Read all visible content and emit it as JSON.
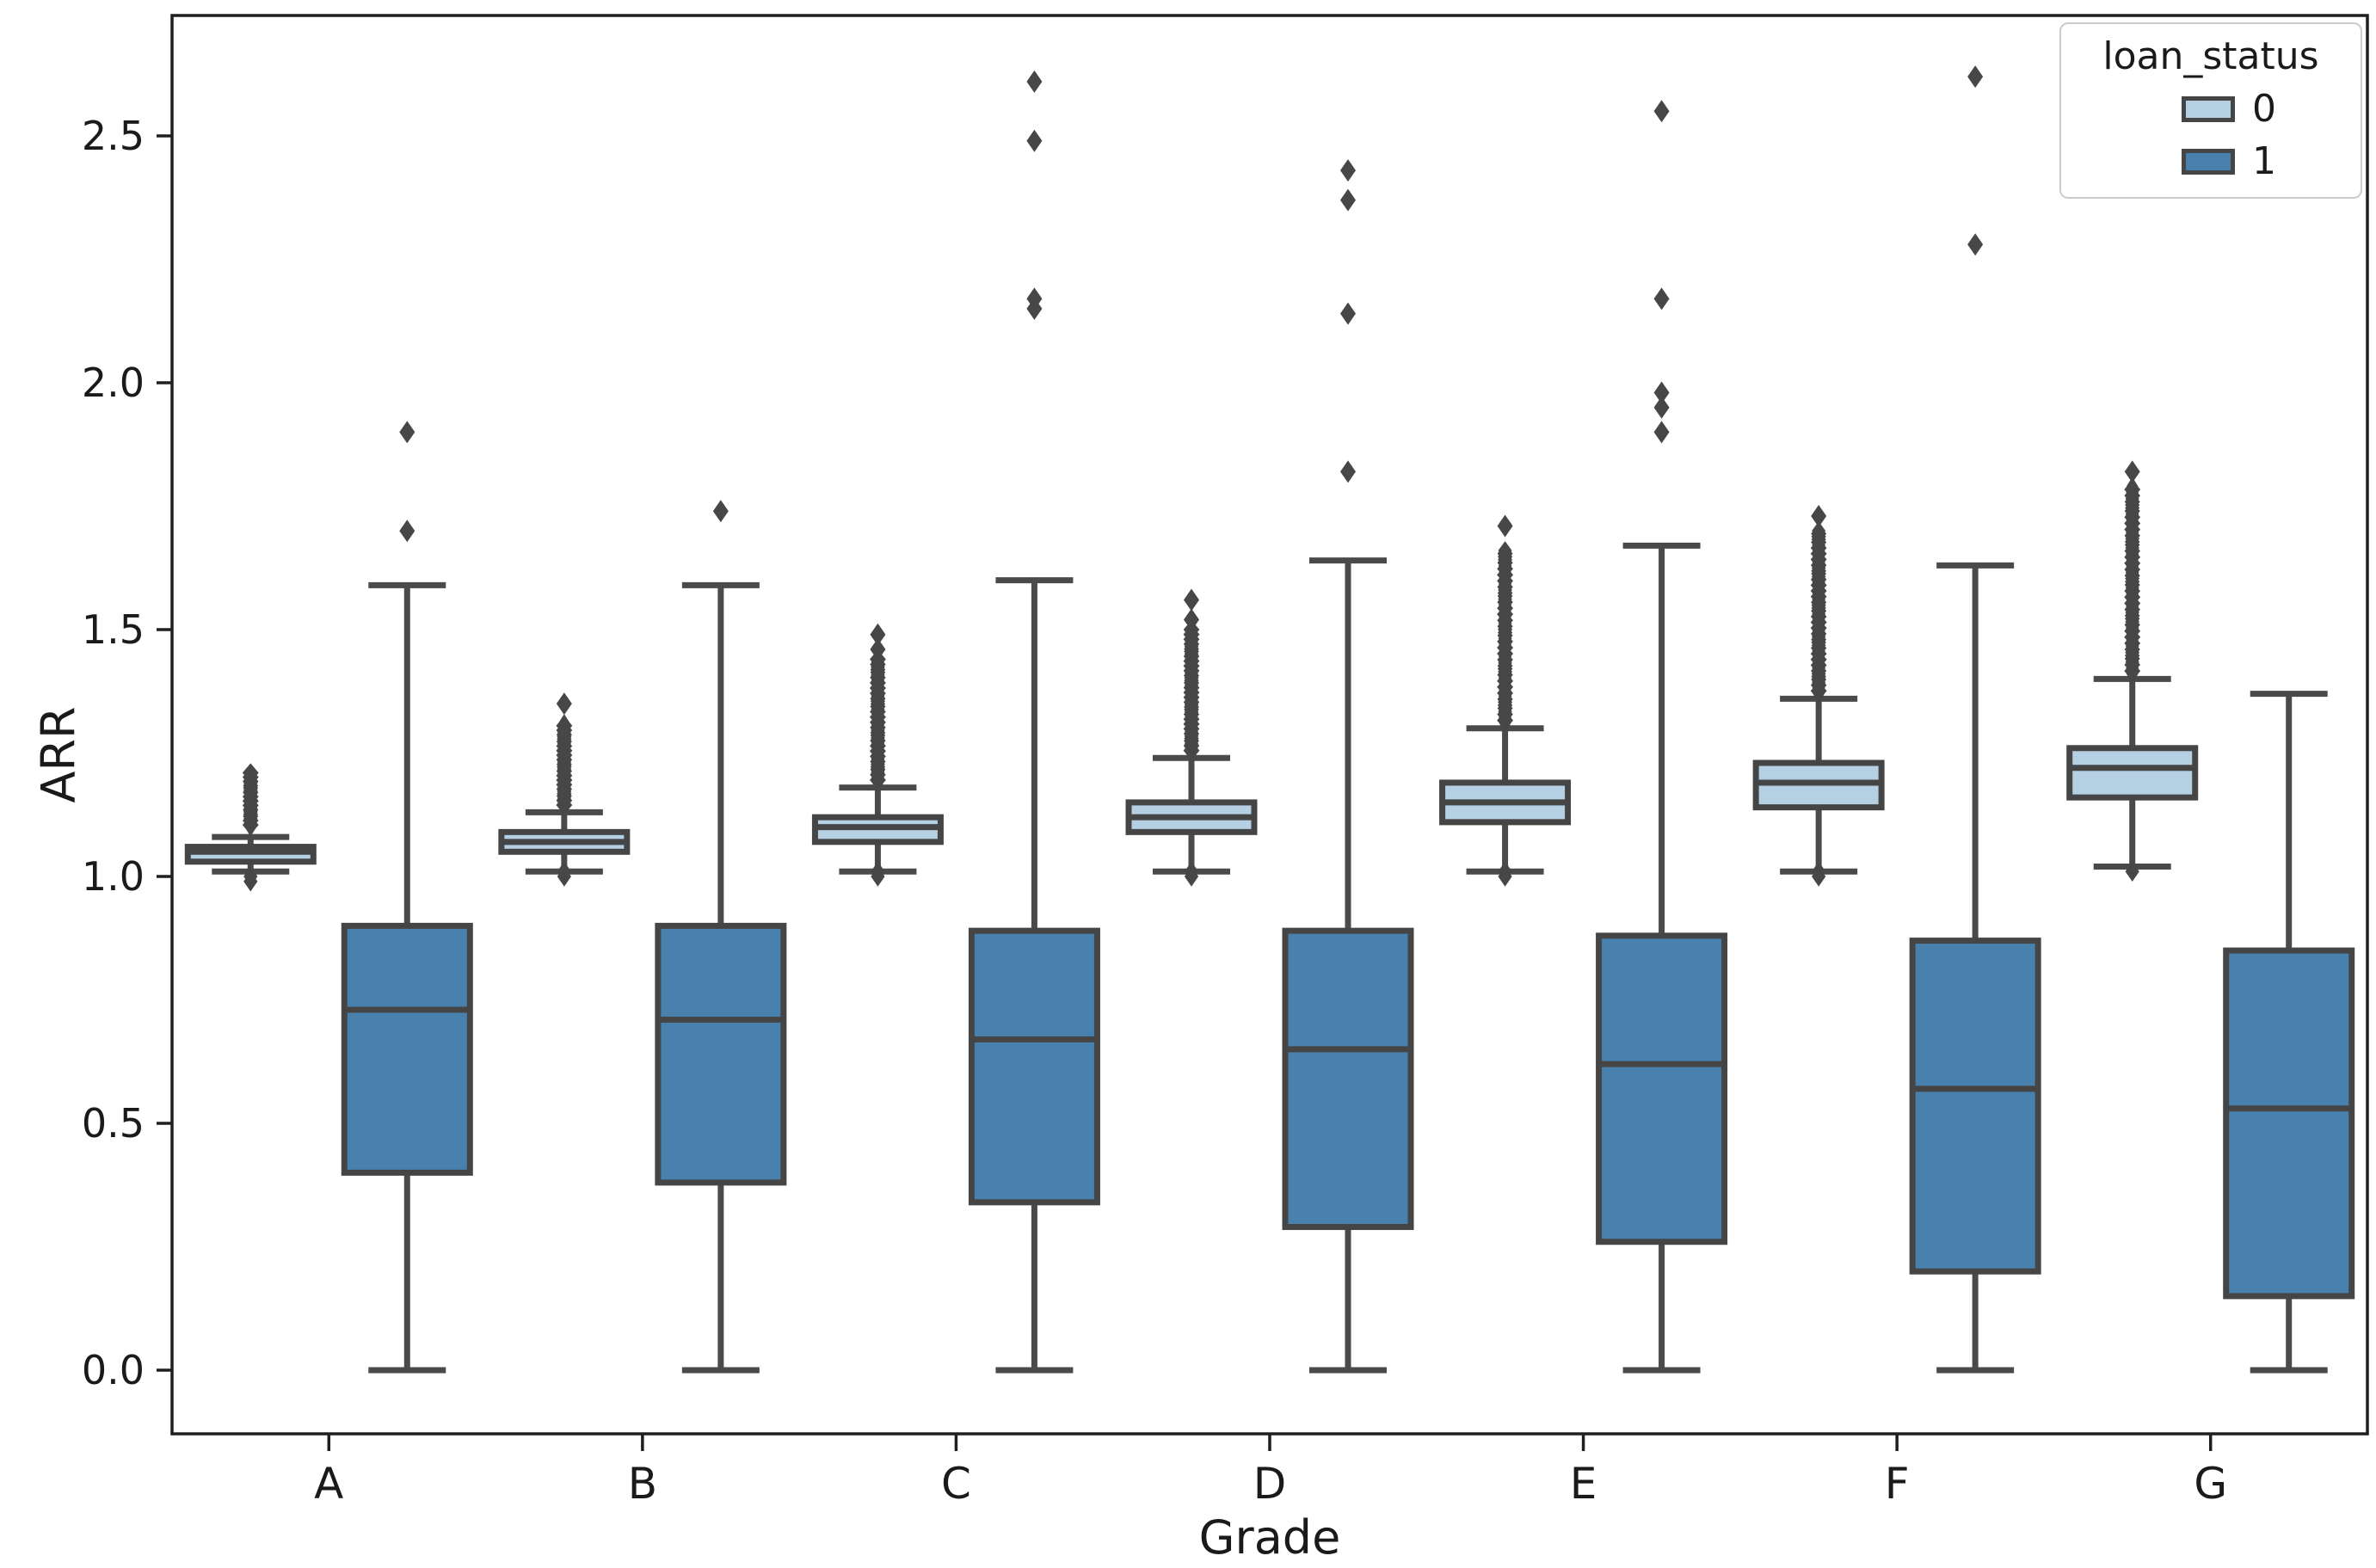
{
  "chart_data": {
    "type": "grouped_boxplot",
    "xlabel": "Grade",
    "ylabel": "ARR",
    "categories": [
      "A",
      "B",
      "C",
      "D",
      "E",
      "F",
      "G"
    ],
    "y_ticks": [
      0.0,
      0.5,
      1.0,
      1.5,
      2.0,
      2.5
    ],
    "ylim": [
      -0.13,
      2.74
    ],
    "grid": false,
    "legend": {
      "title": "loan_status",
      "position": "upper right",
      "entries": [
        {
          "label": "0",
          "color": "#b5cfe3"
        },
        {
          "label": "1",
          "color": "#4881ad"
        }
      ]
    },
    "style": {
      "box_edge_color": "#454545",
      "whisker_color": "#4a4a4a",
      "median_color": "#454545",
      "flier_color": "#474747",
      "spine_color": "#1f1f1f",
      "tick_label_color": "#1a1a1a"
    },
    "series": [
      {
        "name": "0",
        "color": "#b5cfe3",
        "boxes": [
          {
            "category": "A",
            "whislo": 1.01,
            "q1": 1.03,
            "med": 1.05,
            "q3": 1.06,
            "whishi": 1.08,
            "fliers_high_cluster": {
              "from": 1.1,
              "to": 1.21,
              "count": 26
            },
            "fliers_high": [],
            "fliers_low": [
              0.99,
              1.0
            ]
          },
          {
            "category": "B",
            "whislo": 1.01,
            "q1": 1.05,
            "med": 1.07,
            "q3": 1.09,
            "whishi": 1.13,
            "fliers_high_cluster": {
              "from": 1.14,
              "to": 1.31,
              "count": 38
            },
            "fliers_high": [
              1.35
            ],
            "fliers_low": [
              1.0,
              1.01
            ]
          },
          {
            "category": "C",
            "whislo": 1.01,
            "q1": 1.07,
            "med": 1.1,
            "q3": 1.12,
            "whishi": 1.18,
            "fliers_high_cluster": {
              "from": 1.19,
              "to": 1.44,
              "count": 48
            },
            "fliers_high": [
              1.46,
              1.49
            ],
            "fliers_low": [
              1.0,
              1.01
            ]
          },
          {
            "category": "D",
            "whislo": 1.01,
            "q1": 1.09,
            "med": 1.12,
            "q3": 1.15,
            "whishi": 1.24,
            "fliers_high_cluster": {
              "from": 1.25,
              "to": 1.5,
              "count": 52
            },
            "fliers_high": [
              1.52,
              1.56
            ],
            "fliers_low": [
              1.0,
              1.01
            ]
          },
          {
            "category": "E",
            "whislo": 1.01,
            "q1": 1.11,
            "med": 1.15,
            "q3": 1.19,
            "whishi": 1.3,
            "fliers_high_cluster": {
              "from": 1.31,
              "to": 1.66,
              "count": 58
            },
            "fliers_high": [
              1.71
            ],
            "fliers_low": [
              1.0,
              1.01
            ]
          },
          {
            "category": "F",
            "whislo": 1.01,
            "q1": 1.14,
            "med": 1.19,
            "q3": 1.23,
            "whishi": 1.36,
            "fliers_high_cluster": {
              "from": 1.37,
              "to": 1.7,
              "count": 58
            },
            "fliers_high": [
              1.73
            ],
            "fliers_low": [
              1.0,
              1.01
            ]
          },
          {
            "category": "G",
            "whislo": 1.02,
            "q1": 1.16,
            "med": 1.22,
            "q3": 1.26,
            "whishi": 1.4,
            "fliers_high_cluster": {
              "from": 1.41,
              "to": 1.79,
              "count": 62
            },
            "fliers_high": [
              1.82
            ],
            "fliers_low": [
              1.01
            ]
          }
        ]
      },
      {
        "name": "1",
        "color": "#4881ad",
        "boxes": [
          {
            "category": "A",
            "whislo": 0.0,
            "q1": 0.4,
            "med": 0.73,
            "q3": 0.9,
            "whishi": 1.59,
            "fliers_high": [
              1.7,
              1.9
            ],
            "fliers_low": []
          },
          {
            "category": "B",
            "whislo": 0.0,
            "q1": 0.38,
            "med": 0.71,
            "q3": 0.9,
            "whishi": 1.59,
            "fliers_high": [
              1.74
            ],
            "fliers_low": []
          },
          {
            "category": "C",
            "whislo": 0.0,
            "q1": 0.34,
            "med": 0.67,
            "q3": 0.89,
            "whishi": 1.6,
            "fliers_high": [
              2.15,
              2.17,
              2.49,
              2.61
            ],
            "fliers_low": []
          },
          {
            "category": "D",
            "whislo": 0.0,
            "q1": 0.29,
            "med": 0.65,
            "q3": 0.89,
            "whishi": 1.64,
            "fliers_high": [
              1.82,
              2.14,
              2.37,
              2.43
            ],
            "fliers_low": []
          },
          {
            "category": "E",
            "whislo": 0.0,
            "q1": 0.26,
            "med": 0.62,
            "q3": 0.88,
            "whishi": 1.67,
            "fliers_high": [
              1.9,
              1.95,
              1.98,
              2.17,
              2.55
            ],
            "fliers_low": []
          },
          {
            "category": "F",
            "whislo": 0.0,
            "q1": 0.2,
            "med": 0.57,
            "q3": 0.87,
            "whishi": 1.63,
            "fliers_high": [
              2.28,
              2.62
            ],
            "fliers_low": []
          },
          {
            "category": "G",
            "whislo": 0.0,
            "q1": 0.15,
            "med": 0.53,
            "q3": 0.85,
            "whishi": 1.37,
            "fliers_high": [],
            "fliers_low": []
          }
        ]
      }
    ]
  }
}
